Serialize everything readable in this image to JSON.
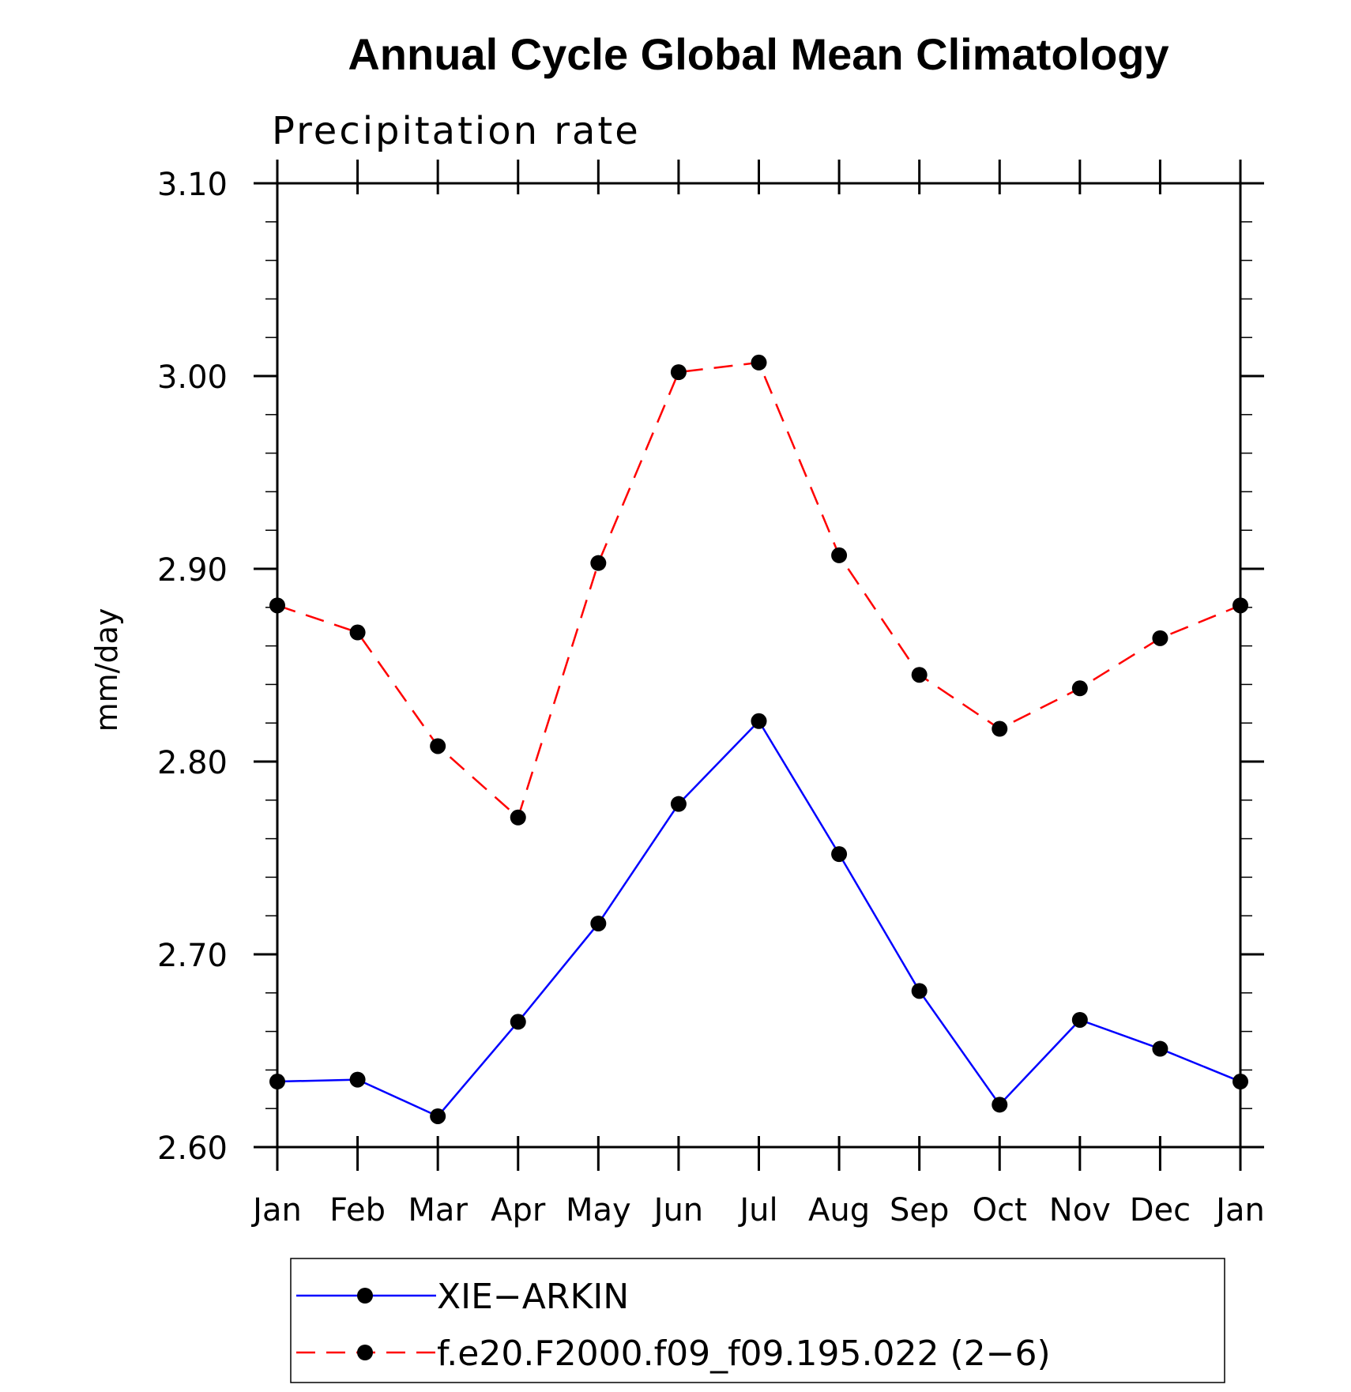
{
  "chart_data": {
    "type": "line",
    "title": "Annual Cycle Global Mean Climatology",
    "subtitle": "Precipitation rate",
    "xlabel": "",
    "ylabel": "mm/day",
    "categories": [
      "Jan",
      "Feb",
      "Mar",
      "Apr",
      "May",
      "Jun",
      "Jul",
      "Aug",
      "Sep",
      "Oct",
      "Nov",
      "Dec",
      "Jan"
    ],
    "ylim": [
      2.6,
      3.1
    ],
    "y_ticks": [
      "2.60",
      "2.70",
      "2.80",
      "2.90",
      "3.00",
      "3.10"
    ],
    "y_tick_values": [
      2.6,
      2.7,
      2.8,
      2.9,
      3.0,
      3.1
    ],
    "y_minor_step": 0.02,
    "legend_position": "bottom",
    "series": [
      {
        "name": "XIE−ARKIN",
        "color": "#0000ff",
        "dash": "solid",
        "marker": "filled-circle",
        "values": [
          2.634,
          2.635,
          2.616,
          2.665,
          2.716,
          2.778,
          2.821,
          2.752,
          2.681,
          2.622,
          2.666,
          2.651,
          2.634
        ]
      },
      {
        "name": "f.e20.F2000.f09_f09.195.022 (2−6)",
        "color": "#ff0000",
        "dash": "dashed",
        "marker": "filled-circle",
        "values": [
          2.881,
          2.867,
          2.808,
          2.771,
          2.903,
          3.002,
          3.007,
          2.907,
          2.845,
          2.817,
          2.838,
          2.864,
          2.881
        ]
      }
    ]
  }
}
